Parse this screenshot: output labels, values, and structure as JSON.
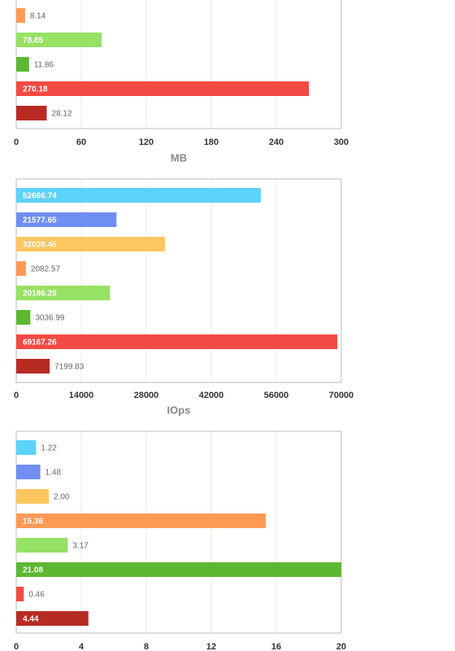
{
  "chart_data": [
    {
      "type": "bar",
      "orientation": "horizontal",
      "xlabel": "MB",
      "values": [
        8.14,
        78.85,
        11.86,
        270.18,
        28.12
      ],
      "colors": [
        "#fd9a55",
        "#97e164",
        "#5cb832",
        "#f24a43",
        "#b82b25"
      ],
      "xlim": [
        0,
        300
      ],
      "xticks": [
        0,
        60,
        120,
        180,
        240,
        300
      ],
      "grid": true
    },
    {
      "type": "bar",
      "orientation": "horizontal",
      "xlabel": "IOps",
      "values": [
        52666.74,
        21577.65,
        32028.45,
        2082.57,
        20186.29,
        3036.99,
        69167.26,
        7199.83
      ],
      "colors": [
        "#5bd3fb",
        "#6f8ff2",
        "#fdc65f",
        "#fd9a55",
        "#97e164",
        "#5cb832",
        "#f24a43",
        "#b82b25"
      ],
      "xlim": [
        0,
        70000
      ],
      "xticks": [
        0,
        14000,
        28000,
        42000,
        56000,
        70000
      ],
      "grid": true
    },
    {
      "type": "bar",
      "orientation": "horizontal",
      "values": [
        1.22,
        1.48,
        2,
        15.36,
        3.17,
        21.08,
        0.46,
        4.44
      ],
      "value_labels": [
        "1.22",
        "1.48",
        "2.00",
        "15.36",
        "3.17",
        "21.08",
        "0.46",
        "4.44"
      ],
      "colors": [
        "#5bd3fb",
        "#6f8ff2",
        "#fdc65f",
        "#fd9a55",
        "#97e164",
        "#5cb832",
        "#f24a43",
        "#b82b25"
      ],
      "xlim": [
        0,
        20
      ],
      "xticks": [
        0,
        4,
        8,
        12,
        16,
        20
      ],
      "grid": true
    }
  ]
}
